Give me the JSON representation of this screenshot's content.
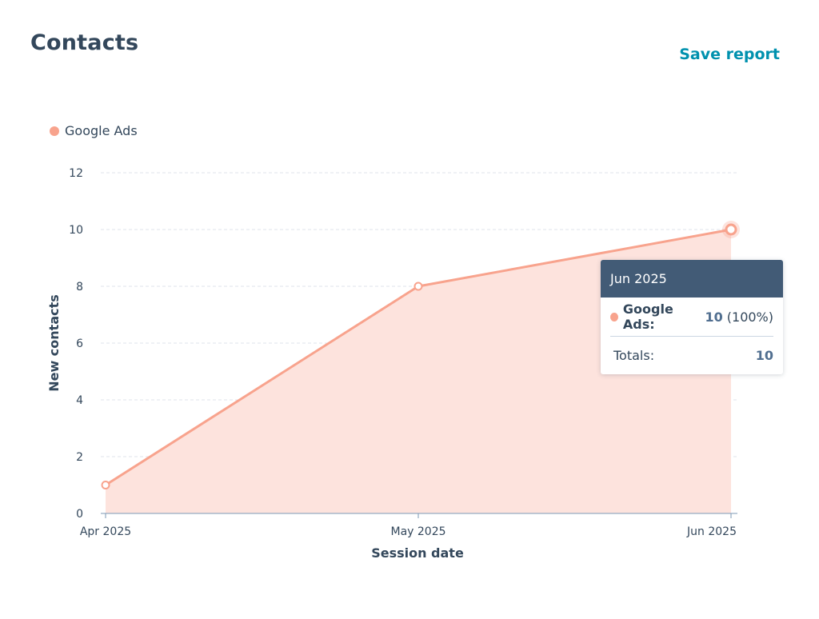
{
  "header": {
    "title": "Contacts",
    "save_label": "Save report"
  },
  "colors": {
    "series": "#f8a38d",
    "area": "#fde3dd",
    "title": "#33475b",
    "link": "#0091ae",
    "tooltip_header": "#425b76",
    "grid": "#dfe3eb"
  },
  "chart_data": {
    "type": "area",
    "x": [
      "Apr 2025",
      "May 2025",
      "Jun 2025"
    ],
    "series": [
      {
        "name": "Google Ads",
        "values": [
          1,
          8,
          10
        ]
      }
    ],
    "xlabel": "Session date",
    "ylabel": "New contacts",
    "ylim": [
      0,
      12
    ],
    "yticks": [
      0,
      2,
      4,
      6,
      8,
      10,
      12
    ],
    "grid": true,
    "legend": "top-left"
  },
  "tooltip": {
    "title": "Jun 2025",
    "series_label": "Google Ads:",
    "value": "10",
    "percent": "(100%)",
    "totals_label": "Totals:",
    "totals_value": "10"
  }
}
